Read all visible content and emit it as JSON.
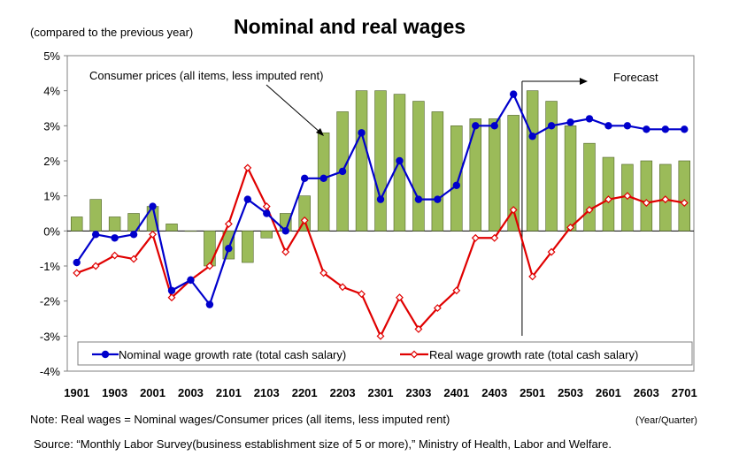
{
  "title": "Nominal and real wages",
  "unit_label": "(compared to the previous year)",
  "note": "Note: Real wages = Nominal wages/Consumer prices (all items, less imputed rent)",
  "x_unit": "(Year/Quarter)",
  "source": "Source: “Monthly Labor Survey(business establishment size of 5 or more),” Ministry of Health, Labor and Welfare.",
  "annotations": {
    "cpi_label": "Consumer prices (all items, less imputed rent)",
    "forecast_label": "Forecast"
  },
  "colors": {
    "bars": "#9bbb59",
    "bar_border": "#4f6228",
    "nominal": "#0000cc",
    "real": "#e00000"
  },
  "chart_data": {
    "type": "bar+line",
    "title": "Nominal and real wages",
    "ylabel": "(compared to the previous year)",
    "ylim": [
      -4,
      5
    ],
    "y_ticks": [
      "5%",
      "4%",
      "3%",
      "2%",
      "1%",
      "0%",
      "-1%",
      "-2%",
      "-3%",
      "-4%"
    ],
    "x_tick_labels": [
      "1901",
      "1903",
      "2001",
      "2003",
      "2101",
      "2103",
      "2201",
      "2203",
      "2301",
      "2303",
      "2401",
      "2403",
      "2501",
      "2503",
      "2601",
      "2603",
      "2701"
    ],
    "categories": [
      "1901",
      "1902",
      "1903",
      "1904",
      "2001",
      "2002",
      "2003",
      "2004",
      "2101",
      "2102",
      "2103",
      "2104",
      "2201",
      "2202",
      "2203",
      "2204",
      "2301",
      "2302",
      "2303",
      "2304",
      "2401",
      "2402",
      "2403",
      "2404",
      "2501",
      "2502",
      "2503",
      "2504",
      "2601",
      "2602",
      "2603",
      "2604",
      "2701"
    ],
    "forecast_start": "2501",
    "series": [
      {
        "name": "Consumer prices (all items, less imputed rent)",
        "type": "bar",
        "values": [
          0.4,
          0.9,
          0.4,
          0.5,
          0.7,
          0.2,
          0.0,
          -1.0,
          -0.8,
          -0.9,
          -0.2,
          0.5,
          1.0,
          2.8,
          3.4,
          4.0,
          4.0,
          3.9,
          3.7,
          3.4,
          3.0,
          3.2,
          3.2,
          3.3,
          4.0,
          3.7,
          3.0,
          2.5,
          2.1,
          1.9,
          2.0,
          1.9,
          2.0
        ]
      },
      {
        "name": "Nominal wage growth rate (total cash salary)",
        "type": "line",
        "values": [
          -0.9,
          -0.1,
          -0.2,
          -0.1,
          0.7,
          -1.7,
          -1.4,
          -2.1,
          -0.5,
          0.9,
          0.5,
          0.0,
          1.5,
          1.5,
          1.7,
          2.8,
          0.9,
          2.0,
          0.9,
          0.9,
          1.3,
          3.0,
          3.0,
          3.9,
          2.7,
          3.0,
          3.1,
          3.2,
          3.0,
          3.0,
          2.9,
          2.9,
          2.9
        ]
      },
      {
        "name": "Real wage growth rate (total cash salary)",
        "type": "line",
        "values": [
          -1.2,
          -1.0,
          -0.7,
          -0.8,
          -0.1,
          -1.9,
          -1.4,
          -1.0,
          0.2,
          1.8,
          0.7,
          -0.6,
          0.3,
          -1.2,
          -1.6,
          -1.8,
          -3.0,
          -1.9,
          -2.8,
          -2.2,
          -1.7,
          -0.2,
          -0.2,
          0.6,
          -1.3,
          -0.6,
          0.1,
          0.6,
          0.9,
          1.0,
          0.8,
          0.9,
          0.8
        ]
      }
    ],
    "legend_position": "bottom"
  }
}
